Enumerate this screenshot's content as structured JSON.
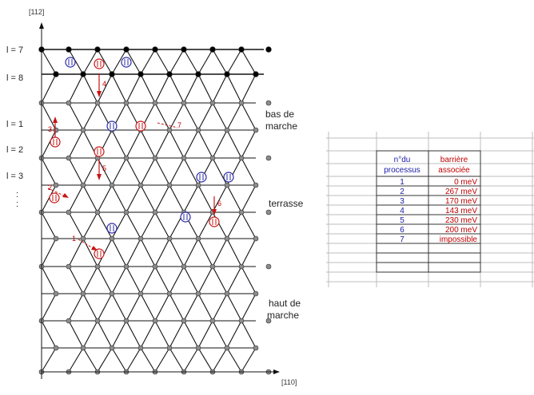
{
  "axes": {
    "vertical_label": "[112]",
    "horizontal_label": "[110]"
  },
  "row_labels": [
    {
      "text": "l = 7"
    },
    {
      "text": "l = 8"
    },
    {
      "text": "l = 1"
    },
    {
      "text": "l = 2"
    },
    {
      "text": "l = 3"
    }
  ],
  "row_ellipsis": ":",
  "zones": {
    "step_bottom": [
      "bas de",
      "marche"
    ],
    "terrace": "terrasse",
    "step_top": [
      "haut de",
      "marche"
    ]
  },
  "process_markers": [
    "4",
    "7",
    "3",
    "5",
    "2",
    "6",
    "1"
  ],
  "table": {
    "headers": [
      [
        "n°du",
        "processus"
      ],
      [
        "barrière",
        "associée"
      ]
    ],
    "rows": [
      {
        "process": "1",
        "barrier": "0 meV"
      },
      {
        "process": "2",
        "barrier": "267 meV"
      },
      {
        "process": "3",
        "barrier": "170 meV"
      },
      {
        "process": "4",
        "barrier": "143 meV"
      },
      {
        "process": "5",
        "barrier": "230 meV"
      },
      {
        "process": "6",
        "barrier": "200 meV"
      },
      {
        "process": "7",
        "barrier": "impossible"
      }
    ]
  },
  "colors": {
    "lattice_line": "#111111",
    "node_dark": "#000000",
    "node_gray": "#8c8c8c",
    "marker_red": "#c81414",
    "marker_blue": "#2a2aa8",
    "table_grid": "#bdbdbd"
  }
}
